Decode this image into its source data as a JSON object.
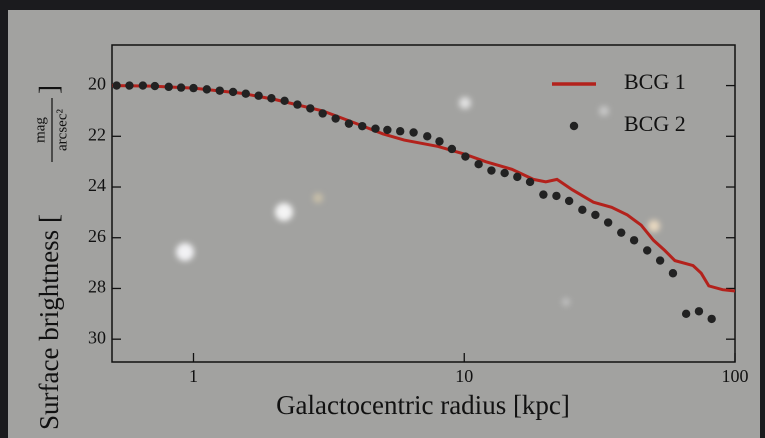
{
  "chart_data": {
    "type": "line_scatter",
    "xlabel": "Galactocentric radius [kpc]",
    "ylabel": {
      "text": "Surface brightness [",
      "unit_numerator": "mag",
      "unit_denominator": "arcsec²",
      "close": "]"
    },
    "xscale": "log",
    "xlim": [
      0.5,
      100
    ],
    "xticks": [
      1,
      10,
      100
    ],
    "ylim": [
      18.4,
      30.9
    ],
    "y_inverted": true,
    "yticks": [
      20,
      22,
      24,
      26,
      28,
      30
    ],
    "legend": "upper right",
    "series": [
      {
        "name": "BCG 1",
        "kind": "line",
        "color": "#b3221c",
        "x": [
          0.5,
          0.7,
          1,
          1.5,
          2,
          3,
          4,
          5,
          6,
          8,
          10,
          12,
          15,
          18,
          20,
          22,
          25,
          30,
          35,
          40,
          45,
          50,
          55,
          60,
          70,
          75,
          80,
          90,
          100
        ],
        "values": [
          20.0,
          20.02,
          20.1,
          20.3,
          20.55,
          21.0,
          21.5,
          21.9,
          22.15,
          22.4,
          22.7,
          23.0,
          23.3,
          23.7,
          23.8,
          23.7,
          24.1,
          24.6,
          24.8,
          25.1,
          25.5,
          26.1,
          26.5,
          26.9,
          27.1,
          27.4,
          27.9,
          28.05,
          28.1
        ]
      },
      {
        "name": "BCG 2",
        "kind": "scatter",
        "color": "#222222",
        "x": [
          0.52,
          0.58,
          0.65,
          0.72,
          0.81,
          0.9,
          1.0,
          1.12,
          1.25,
          1.4,
          1.56,
          1.74,
          1.94,
          2.17,
          2.42,
          2.7,
          3.0,
          3.35,
          3.75,
          4.2,
          4.7,
          5.2,
          5.8,
          6.5,
          7.3,
          8.1,
          9.0,
          10.1,
          11.3,
          12.6,
          14.1,
          15.7,
          17.5,
          19.6,
          21.9,
          24.4,
          27.3,
          30.5,
          34,
          38,
          42.4,
          47.4,
          52.9,
          59,
          66,
          73.6,
          82
        ],
        "values": [
          20.0,
          20.0,
          20.0,
          20.02,
          20.05,
          20.08,
          20.1,
          20.15,
          20.2,
          20.25,
          20.32,
          20.4,
          20.5,
          20.6,
          20.75,
          20.9,
          21.1,
          21.3,
          21.5,
          21.6,
          21.7,
          21.75,
          21.8,
          21.85,
          22.0,
          22.2,
          22.5,
          22.8,
          23.1,
          23.35,
          23.45,
          23.6,
          23.8,
          24.3,
          24.35,
          24.55,
          24.9,
          25.1,
          25.4,
          25.8,
          26.1,
          26.5,
          26.9,
          27.4,
          29.0,
          28.9,
          29.2
        ]
      }
    ]
  }
}
